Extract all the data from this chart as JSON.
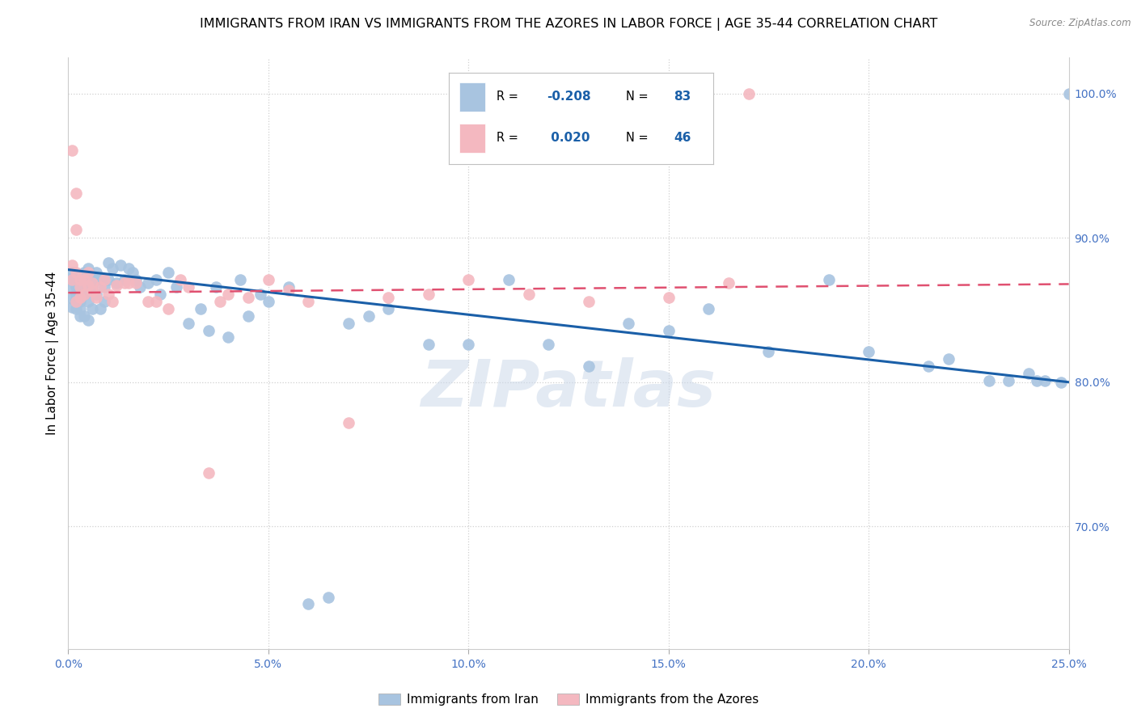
{
  "title": "IMMIGRANTS FROM IRAN VS IMMIGRANTS FROM THE AZORES IN LABOR FORCE | AGE 35-44 CORRELATION CHART",
  "source": "Source: ZipAtlas.com",
  "ylabel_label": "In Labor Force | Age 35-44",
  "legend_r1": "-0.208",
  "legend_n1": "83",
  "legend_r2": "0.020",
  "legend_n2": "46",
  "legend_label1": "Immigrants from Iran",
  "legend_label2": "Immigrants from the Azores",
  "color_iran": "#a8c4e0",
  "color_azores": "#f4b8c0",
  "color_line_iran": "#1a5fa8",
  "color_line_azores": "#e05070",
  "xlim": [
    0.0,
    0.25
  ],
  "ylim": [
    0.615,
    1.025
  ],
  "iran_x": [
    0.001,
    0.001,
    0.001,
    0.001,
    0.001,
    0.002,
    0.002,
    0.002,
    0.002,
    0.002,
    0.003,
    0.003,
    0.003,
    0.003,
    0.003,
    0.004,
    0.004,
    0.004,
    0.004,
    0.005,
    0.005,
    0.005,
    0.005,
    0.006,
    0.006,
    0.006,
    0.007,
    0.007,
    0.007,
    0.008,
    0.008,
    0.009,
    0.009,
    0.01,
    0.01,
    0.011,
    0.012,
    0.013,
    0.014,
    0.015,
    0.016,
    0.017,
    0.018,
    0.02,
    0.022,
    0.023,
    0.025,
    0.027,
    0.03,
    0.033,
    0.035,
    0.037,
    0.04,
    0.043,
    0.045,
    0.048,
    0.05,
    0.055,
    0.06,
    0.065,
    0.07,
    0.075,
    0.08,
    0.09,
    0.1,
    0.11,
    0.12,
    0.13,
    0.14,
    0.15,
    0.16,
    0.175,
    0.19,
    0.2,
    0.215,
    0.22,
    0.23,
    0.235,
    0.24,
    0.242,
    0.244,
    0.248,
    0.25
  ],
  "iran_y": [
    0.872,
    0.876,
    0.858,
    0.866,
    0.852,
    0.861,
    0.857,
    0.866,
    0.871,
    0.851,
    0.869,
    0.863,
    0.856,
    0.851,
    0.846,
    0.876,
    0.871,
    0.861,
    0.846,
    0.879,
    0.869,
    0.856,
    0.843,
    0.873,
    0.866,
    0.851,
    0.876,
    0.861,
    0.871,
    0.851,
    0.871,
    0.866,
    0.856,
    0.883,
    0.871,
    0.879,
    0.869,
    0.881,
    0.871,
    0.879,
    0.876,
    0.871,
    0.866,
    0.869,
    0.871,
    0.861,
    0.876,
    0.866,
    0.841,
    0.851,
    0.836,
    0.866,
    0.831,
    0.871,
    0.846,
    0.861,
    0.856,
    0.866,
    0.646,
    0.651,
    0.841,
    0.846,
    0.851,
    0.826,
    0.826,
    0.871,
    0.826,
    0.811,
    0.841,
    0.836,
    0.851,
    0.821,
    0.871,
    0.821,
    0.811,
    0.816,
    0.801,
    0.801,
    0.806,
    0.801,
    0.801,
    0.8,
    1.0
  ],
  "azores_x": [
    0.001,
    0.001,
    0.001,
    0.002,
    0.002,
    0.002,
    0.002,
    0.003,
    0.003,
    0.003,
    0.004,
    0.004,
    0.005,
    0.005,
    0.006,
    0.006,
    0.007,
    0.008,
    0.009,
    0.01,
    0.011,
    0.012,
    0.014,
    0.015,
    0.017,
    0.02,
    0.022,
    0.025,
    0.028,
    0.03,
    0.035,
    0.038,
    0.04,
    0.045,
    0.05,
    0.055,
    0.06,
    0.07,
    0.08,
    0.09,
    0.1,
    0.115,
    0.13,
    0.15,
    0.165,
    0.17
  ],
  "azores_y": [
    0.961,
    0.871,
    0.881,
    0.931,
    0.906,
    0.876,
    0.856,
    0.871,
    0.866,
    0.859,
    0.871,
    0.861,
    0.876,
    0.867,
    0.869,
    0.863,
    0.859,
    0.866,
    0.871,
    0.861,
    0.856,
    0.867,
    0.869,
    0.869,
    0.869,
    0.856,
    0.856,
    0.851,
    0.871,
    0.866,
    0.737,
    0.856,
    0.861,
    0.859,
    0.871,
    0.864,
    0.856,
    0.772,
    0.859,
    0.861,
    0.871,
    0.861,
    0.856,
    0.859,
    0.869,
    1.0
  ],
  "iran_line_x": [
    0.0,
    0.25
  ],
  "iran_line_y": [
    0.878,
    0.8
  ],
  "azores_line_x": [
    0.0,
    0.25
  ],
  "azores_line_y": [
    0.862,
    0.868
  ],
  "watermark": "ZIPatlas",
  "background_color": "#ffffff",
  "title_fontsize": 11.5,
  "tick_color": "#4472c4",
  "grid_color": "#d0d0d0",
  "y_ticks": [
    0.7,
    0.8,
    0.9,
    1.0
  ],
  "x_ticks": [
    0.0,
    0.05,
    0.1,
    0.15,
    0.2,
    0.25
  ]
}
